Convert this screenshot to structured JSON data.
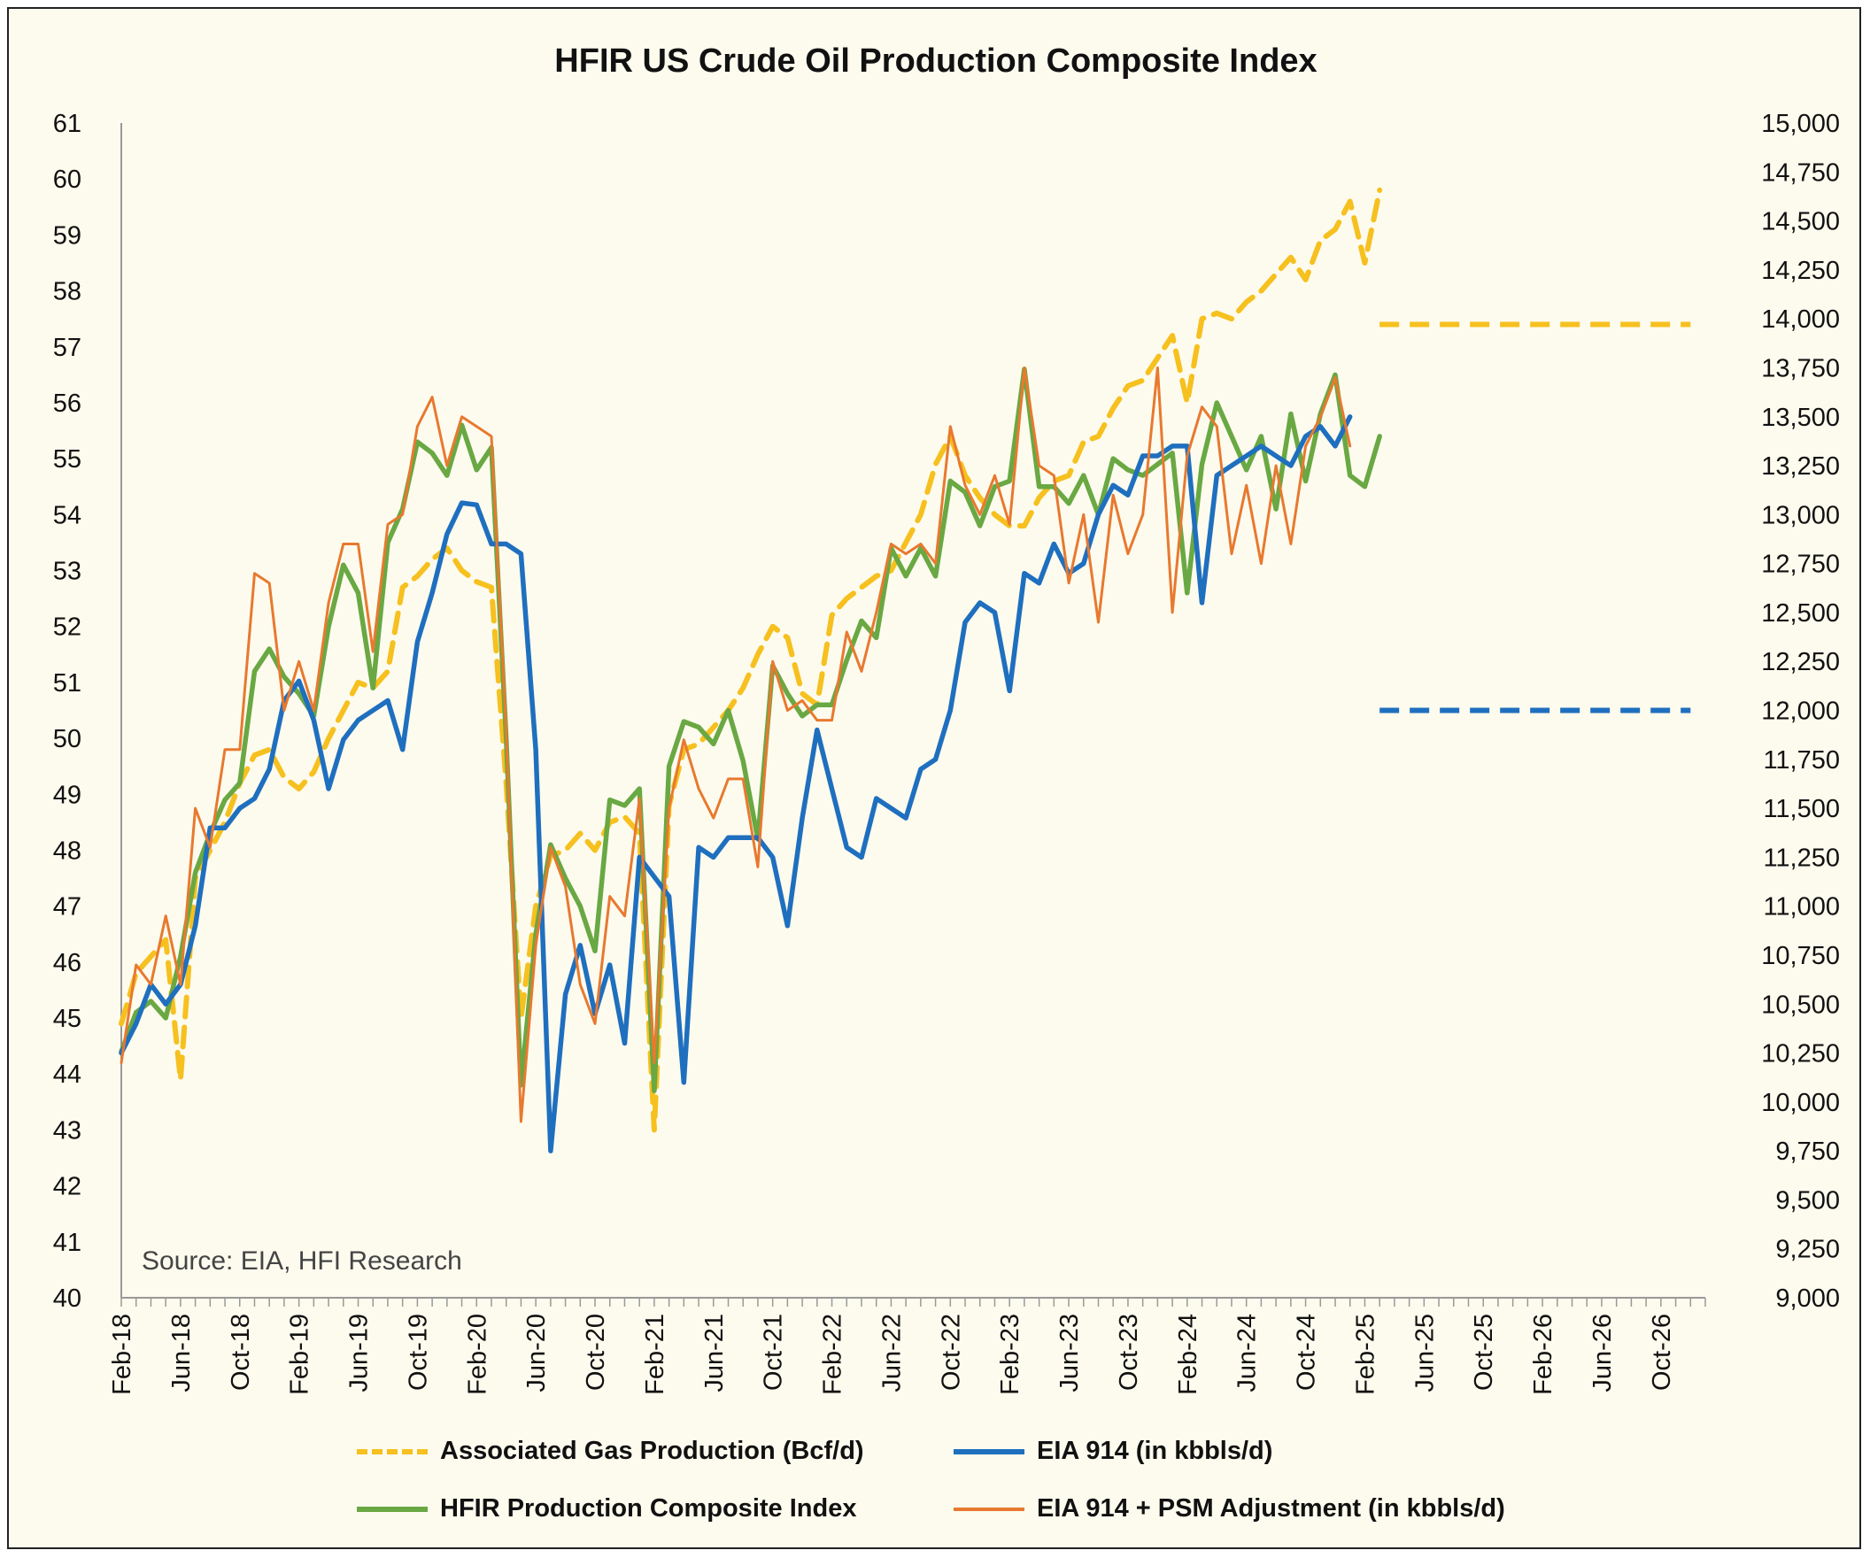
{
  "colors": {
    "background": "#fdfbee",
    "gold": "#f6c01f",
    "blue": "#1f6fbf",
    "green": "#69a843",
    "orange": "#e8792f"
  },
  "source_note": "Source: EIA, HFI Research",
  "legend": {
    "gas": "Associated Gas Production (Bcf/d)",
    "eia": "EIA 914 (in kbbls/d)",
    "hfir": "HFIR Production Composite Index",
    "psm": "EIA 914 + PSM Adjustment (in kbbls/d)"
  },
  "chart_data": {
    "type": "line",
    "title": "HFIR US Crude Oil Production Composite Index",
    "xlabel": "",
    "ylabel": "",
    "y2label": "",
    "x_start": "Feb-18",
    "x_end": "Jan-27",
    "grid": false,
    "legend_position": "bottom",
    "x_tick_labels": [
      "Feb-18",
      "Jun-18",
      "Oct-18",
      "Feb-19",
      "Jun-19",
      "Oct-19",
      "Feb-20",
      "Jun-20",
      "Oct-20",
      "Feb-21",
      "Jun-21",
      "Oct-21",
      "Feb-22",
      "Jun-22",
      "Oct-22",
      "Feb-23",
      "Jun-23",
      "Oct-23",
      "Feb-24",
      "Jun-24",
      "Oct-24",
      "Feb-25",
      "Jun-25",
      "Oct-25",
      "Feb-26",
      "Jun-26",
      "Oct-26"
    ],
    "ylim": [
      40,
      61
    ],
    "y_ticks": [
      "40",
      "41",
      "42",
      "43",
      "44",
      "45",
      "46",
      "47",
      "48",
      "49",
      "50",
      "51",
      "52",
      "53",
      "54",
      "55",
      "56",
      "57",
      "58",
      "59",
      "60",
      "61"
    ],
    "y2lim": [
      9000,
      15000
    ],
    "y2_ticks": [
      "9,000",
      "9,250",
      "9,500",
      "9,750",
      "10,000",
      "10,250",
      "10,500",
      "10,750",
      "11,000",
      "11,250",
      "11,500",
      "11,750",
      "12,000",
      "12,250",
      "12,500",
      "12,750",
      "13,000",
      "13,250",
      "13,500",
      "13,750",
      "14,000",
      "14,250",
      "14,500",
      "14,750",
      "15,000"
    ],
    "series": [
      {
        "name": "Associated Gas Production (Bcf/d)",
        "axis": "left",
        "style": "dashed",
        "color": "#f6c01f",
        "x_start": "Feb-18",
        "values": [
          44.9,
          45.8,
          46.1,
          46.4,
          43.9,
          47.5,
          48.0,
          48.5,
          49.2,
          49.7,
          49.8,
          49.3,
          49.1,
          49.4,
          50.0,
          50.5,
          51.0,
          50.9,
          51.2,
          52.7,
          52.9,
          53.2,
          53.4,
          53.0,
          52.8,
          52.7,
          49.2,
          45.0,
          47.0,
          47.9,
          48.0,
          48.3,
          48.0,
          48.5,
          48.6,
          48.3,
          43.0,
          48.8,
          49.8,
          49.9,
          50.2,
          50.5,
          50.9,
          51.5,
          52.0,
          51.8,
          50.8,
          50.6,
          52.2,
          52.5,
          52.7,
          52.9,
          53.0,
          53.5,
          54.0,
          54.9,
          55.4,
          54.7,
          54.3,
          54.0,
          53.8,
          53.8,
          54.3,
          54.6,
          54.7,
          55.3,
          55.4,
          55.9,
          56.3,
          56.4,
          56.8,
          57.2,
          56.0,
          57.5,
          57.6,
          57.5,
          57.8,
          58.0,
          58.3,
          58.6,
          58.2,
          58.9,
          59.1,
          59.6,
          58.5,
          59.8
        ],
        "forecast": {
          "x_start": "Mar-25",
          "x_end": "Dec-26",
          "value": 57.4
        }
      },
      {
        "name": "EIA 914 (in kbbls/d)",
        "axis": "right",
        "style": "solid",
        "color": "#1f6fbf",
        "x_start": "Feb-18",
        "values": [
          10250,
          10400,
          10600,
          10500,
          10600,
          10900,
          11400,
          11400,
          11500,
          11550,
          11700,
          12050,
          12150,
          11950,
          11600,
          11850,
          11950,
          12000,
          12050,
          11800,
          12350,
          12600,
          12900,
          13060,
          13050,
          12850,
          12850,
          12800,
          11800,
          9750,
          10550,
          10800,
          10450,
          10700,
          10300,
          11250,
          11150,
          11050,
          10100,
          11300,
          11250,
          11350,
          11350,
          11350,
          11250,
          10900,
          11450,
          11900,
          11600,
          11300,
          11250,
          11550,
          11500,
          11450,
          11700,
          11750,
          12000,
          12450,
          12550,
          12500,
          12100,
          12700,
          12650,
          12850,
          12700,
          12750,
          13000,
          13150,
          13100,
          13300,
          13300,
          13350,
          13350,
          12550,
          13200,
          13250,
          13300,
          13350,
          13300,
          13250,
          13400,
          13450,
          13350,
          13500
        ]
      },
      {
        "name": "HFIR Production Composite Index",
        "axis": "left",
        "style": "solid",
        "color": "#69a843",
        "x_start": "Feb-18",
        "values": [
          44.4,
          45.1,
          45.3,
          45.0,
          46.1,
          47.6,
          48.3,
          48.9,
          49.2,
          51.2,
          51.6,
          51.1,
          50.8,
          50.4,
          52.0,
          53.1,
          52.6,
          50.9,
          53.5,
          54.1,
          55.3,
          55.1,
          54.7,
          55.6,
          54.8,
          55.2,
          50.0,
          43.8,
          46.5,
          48.1,
          47.5,
          47.0,
          46.2,
          48.9,
          48.8,
          49.1,
          43.7,
          49.5,
          50.3,
          50.2,
          49.9,
          50.5,
          49.6,
          48.2,
          51.3,
          50.8,
          50.4,
          50.6,
          50.6,
          51.4,
          52.1,
          51.8,
          53.4,
          52.9,
          53.4,
          52.9,
          54.6,
          54.4,
          53.8,
          54.5,
          54.6,
          56.6,
          54.5,
          54.5,
          54.2,
          54.7,
          54.0,
          55.0,
          54.8,
          54.7,
          54.9,
          55.1,
          52.6,
          54.9,
          56.0,
          55.4,
          54.8,
          55.4,
          54.1,
          55.8,
          54.6,
          55.8,
          56.5,
          54.7,
          54.5,
          55.4
        ]
      },
      {
        "name": "EIA 914 + PSM Adjustment (in kbbls/d)",
        "axis": "right",
        "style": "solid-thin",
        "color": "#e8792f",
        "x_start": "Feb-18",
        "values": [
          10200,
          10700,
          10600,
          10950,
          10600,
          11500,
          11300,
          11800,
          11800,
          12700,
          12650,
          12000,
          12250,
          12000,
          12550,
          12850,
          12850,
          12300,
          12950,
          13000,
          13450,
          13600,
          13250,
          13500,
          13450,
          13400,
          11900,
          9900,
          10800,
          11300,
          11100,
          10600,
          10400,
          11050,
          10950,
          11550,
          10200,
          11500,
          11850,
          11600,
          11450,
          11650,
          11650,
          11200,
          12250,
          12000,
          12050,
          11950,
          11950,
          12400,
          12200,
          12500,
          12850,
          12800,
          12850,
          12750,
          13450,
          13150,
          13000,
          13200,
          12950,
          13750,
          13250,
          13200,
          12650,
          13000,
          12450,
          13100,
          12800,
          13000,
          13750,
          12500,
          13300,
          13550,
          13450,
          12800,
          13150,
          12750,
          13250,
          12850,
          13350,
          13500,
          13700,
          13350
        ]
      }
    ]
  }
}
